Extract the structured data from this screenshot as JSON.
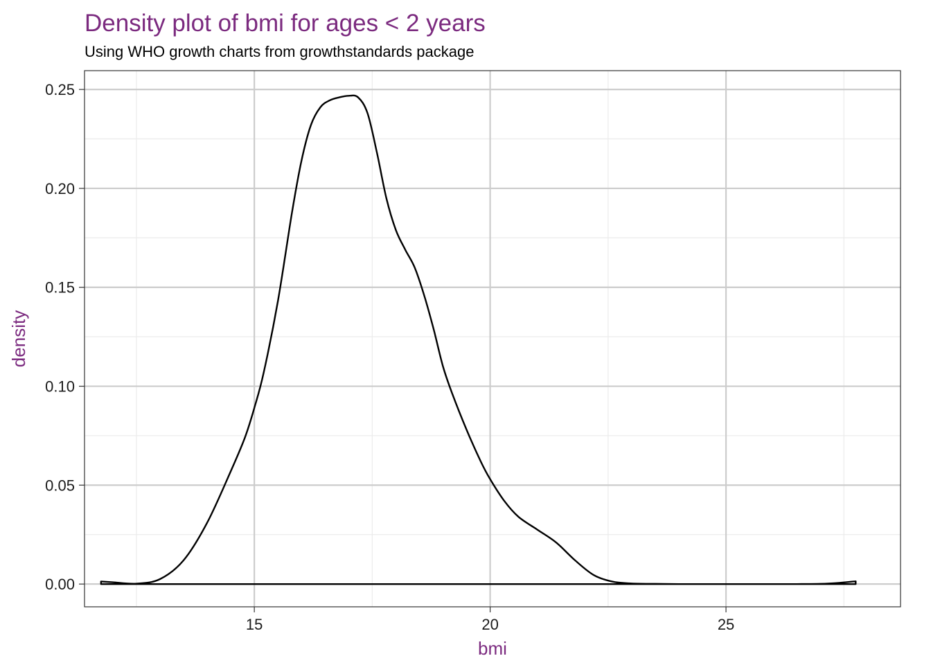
{
  "colors": {
    "accent": "#7b2a7f",
    "text": "#000000",
    "tick_text": "#1a1a1a",
    "grid_major": "#cccccc",
    "grid_minor": "#ebebeb",
    "panel_border": "#333333",
    "curve": "#000000"
  },
  "chart_data": {
    "type": "area",
    "title": "Density plot of bmi for ages < 2 years",
    "subtitle": "Using WHO growth charts from growthstandards package",
    "xlabel": "bmi",
    "ylabel": "density",
    "xlim": [
      11.4,
      28.7
    ],
    "ylim": [
      -0.0115,
      0.2595
    ],
    "grid": true,
    "x_ticks": [
      15,
      20,
      25
    ],
    "x_tick_labels": [
      "15",
      "20",
      "25"
    ],
    "x_minor_ticks": [
      12.5,
      17.5,
      22.5,
      27.5
    ],
    "y_ticks": [
      0.0,
      0.05,
      0.1,
      0.15,
      0.2,
      0.25
    ],
    "y_tick_labels": [
      "0.00",
      "0.05",
      "0.10",
      "0.15",
      "0.20",
      "0.25"
    ],
    "y_minor_ticks": [
      0.025,
      0.075,
      0.125,
      0.175,
      0.225
    ],
    "series": [
      {
        "x": [
          11.75,
          12.0,
          12.5,
          13.0,
          13.5,
          14.0,
          14.5,
          14.8,
          15.0,
          15.2,
          15.5,
          15.8,
          16.0,
          16.2,
          16.4,
          16.6,
          16.8,
          17.0,
          17.2,
          17.4,
          17.6,
          17.8,
          18.0,
          18.2,
          18.4,
          18.6,
          18.8,
          19.0,
          19.2,
          19.5,
          19.8,
          20.0,
          20.3,
          20.6,
          21.0,
          21.4,
          21.8,
          22.2,
          22.6,
          23.0,
          23.5,
          24.0,
          25.0,
          26.0,
          26.5,
          27.0,
          27.4,
          27.75
        ],
        "y": [
          0.0013,
          0.0009,
          0.0002,
          0.0025,
          0.012,
          0.031,
          0.057,
          0.074,
          0.089,
          0.107,
          0.143,
          0.188,
          0.214,
          0.232,
          0.241,
          0.2445,
          0.246,
          0.2468,
          0.246,
          0.238,
          0.218,
          0.195,
          0.179,
          0.169,
          0.16,
          0.146,
          0.129,
          0.11,
          0.096,
          0.078,
          0.062,
          0.053,
          0.042,
          0.034,
          0.0275,
          0.021,
          0.012,
          0.0045,
          0.0012,
          0.0003,
          0.0001,
          0.0,
          0.0,
          0.0,
          0.0,
          0.0001,
          0.0006,
          0.0014
        ]
      }
    ]
  }
}
